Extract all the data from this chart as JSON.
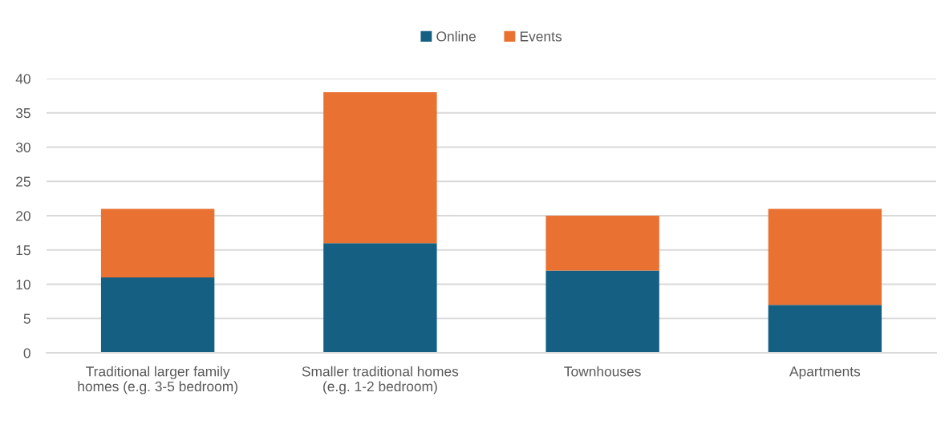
{
  "chart_data": {
    "type": "bar",
    "stacked": true,
    "categories": [
      "Traditional larger family\nhomes (e.g. 3-5 bedroom)",
      "Smaller traditional homes\n(e.g. 1-2 bedroom)",
      "Townhouses",
      "Apartments"
    ],
    "series": [
      {
        "name": "Online",
        "color": "#156082",
        "values": [
          11,
          16,
          12,
          7
        ]
      },
      {
        "name": "Events",
        "color": "#e97132",
        "values": [
          10,
          22,
          8,
          14
        ]
      }
    ],
    "ylim": [
      0,
      40
    ],
    "yticks": [
      0,
      5,
      10,
      15,
      20,
      25,
      30,
      35,
      40
    ],
    "grid": "y",
    "legend": "top"
  }
}
